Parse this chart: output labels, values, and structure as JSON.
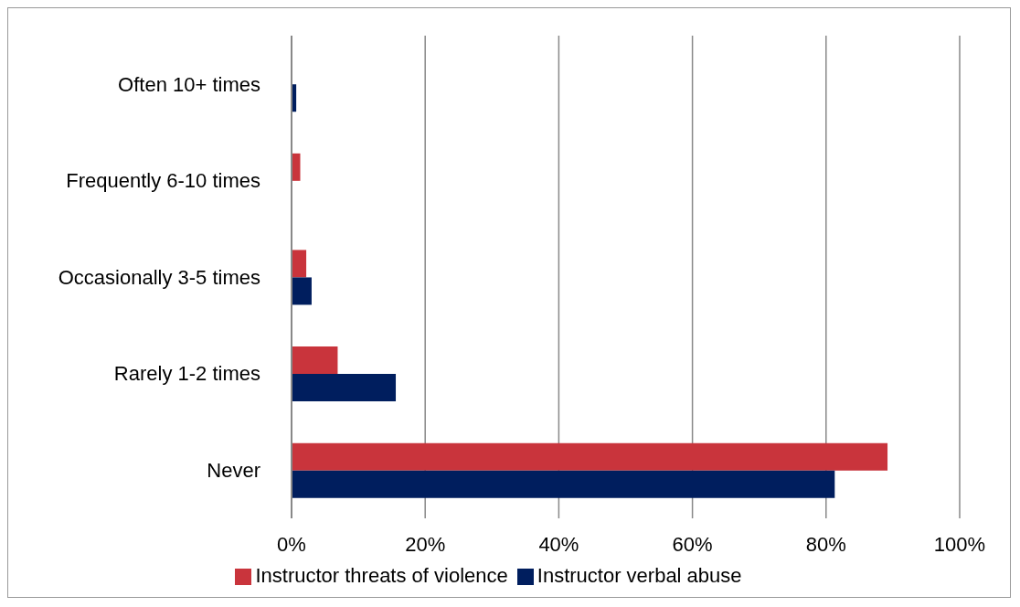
{
  "chart_data": {
    "type": "bar",
    "orientation": "horizontal",
    "categories": [
      "Often 10+ times",
      "Frequently 6-10 times",
      "Occasionally 3-5 times",
      "Rarely 1-2 times",
      "Never"
    ],
    "series": [
      {
        "name": "Instructor threats of violence",
        "color": "#c9343c",
        "values": [
          0,
          1.3,
          2.2,
          6.9,
          89.2
        ]
      },
      {
        "name": "Instructor verbal abuse",
        "color": "#001e5e",
        "values": [
          0.7,
          0,
          3.0,
          15.6,
          81.3
        ]
      }
    ],
    "xlim": [
      0,
      100
    ],
    "xticks": [
      {
        "value": 0,
        "label": "0%"
      },
      {
        "value": 20,
        "label": "20%"
      },
      {
        "value": 40,
        "label": "40%"
      },
      {
        "value": 60,
        "label": "60%"
      },
      {
        "value": 80,
        "label": "80%"
      },
      {
        "value": 100,
        "label": "100%"
      }
    ],
    "grid": "x",
    "legend": "bottom"
  }
}
